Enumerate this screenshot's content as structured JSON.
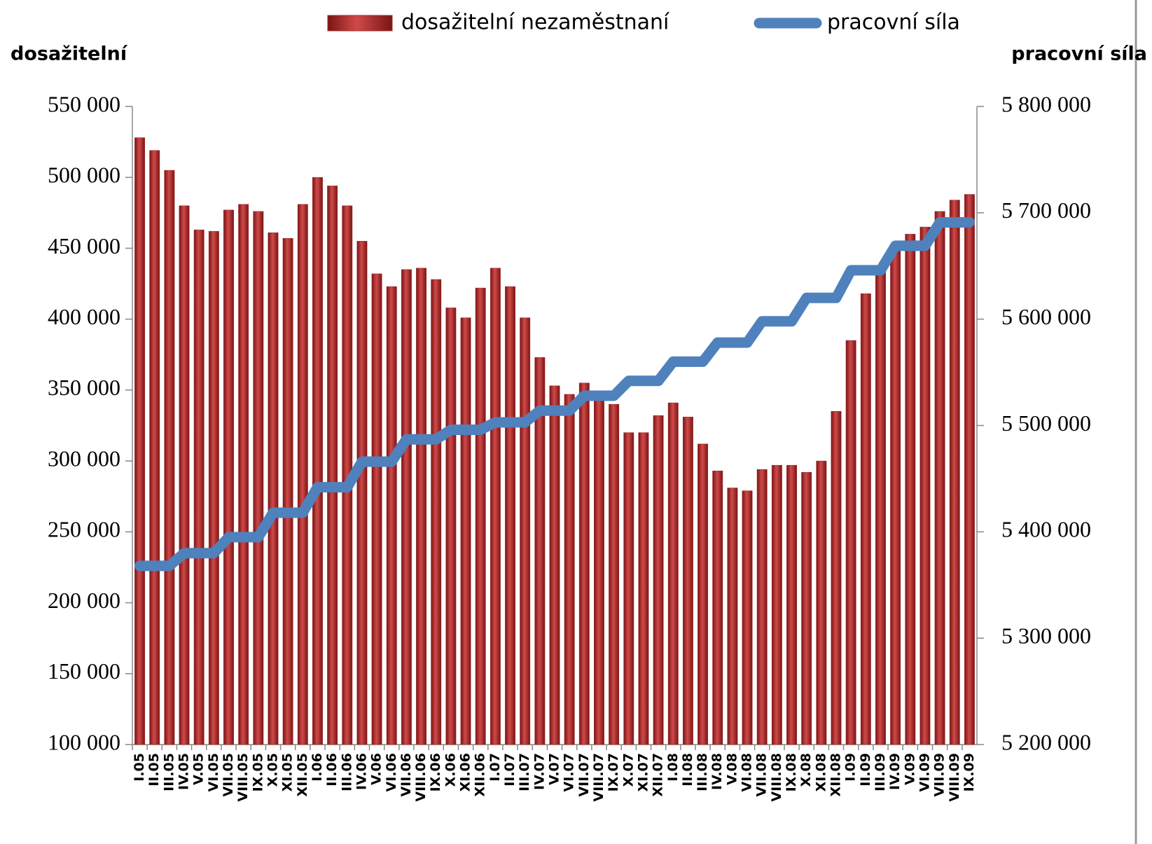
{
  "chart_data": {
    "type": "bar-line",
    "legend": "top",
    "y_label": "dosažitelní",
    "y2_label": "pracovní síla",
    "categories": [
      "I.05",
      "II.05",
      "III.05",
      "IV.05",
      "V.05",
      "VI.05",
      "VII.05",
      "VIII.05",
      "IX.05",
      "X.05",
      "XI.05",
      "XII.05",
      "I.06",
      "II.06",
      "III.06",
      "IV.06",
      "V.06",
      "VI.06",
      "VII.06",
      "VIII.06",
      "IX.06",
      "X.06",
      "XI.06",
      "XII.06",
      "I.07",
      "II.07",
      "III.07",
      "IV.07",
      "V.07",
      "VI.07",
      "VII.07",
      "VIII.07",
      "IX.07",
      "X.07",
      "XI.07",
      "XII.07",
      "I.08",
      "II.08",
      "III.08",
      "IV.08",
      "V.08",
      "VI.08",
      "VII.08",
      "VIII.08",
      "IX.08",
      "X.08",
      "XI.08",
      "XII.08",
      "I.09",
      "II.09",
      "III.09",
      "IV.09",
      "V.09",
      "VI.09",
      "VII.09",
      "VIII.09",
      "IX.09"
    ],
    "series": [
      {
        "name": "dosažitelní nezaměstnaní",
        "type": "bar",
        "color": "#a52a2a",
        "values": [
          528000,
          519000,
          505000,
          480000,
          463000,
          462000,
          477000,
          481000,
          476000,
          461000,
          457000,
          481000,
          500000,
          494000,
          480000,
          455000,
          432000,
          423000,
          435000,
          436000,
          428000,
          408000,
          401000,
          422000,
          436000,
          423000,
          401000,
          373000,
          353000,
          347000,
          355000,
          345000,
          340000,
          320000,
          320000,
          332000,
          341000,
          331000,
          312000,
          293000,
          281000,
          279000,
          294000,
          297000,
          297000,
          292000,
          300000,
          335000,
          385000,
          418000,
          435000,
          450000,
          460000,
          465000,
          476000,
          484000,
          488000
        ]
      },
      {
        "name": "pracovní síla",
        "type": "line",
        "axis": "y2",
        "color": "#4f81bd",
        "values": [
          5368000,
          5368000,
          5368000,
          5380000,
          5380000,
          5380000,
          5395000,
          5395000,
          5395000,
          5418000,
          5418000,
          5418000,
          5442000,
          5442000,
          5442000,
          5466000,
          5466000,
          5466000,
          5487000,
          5487000,
          5487000,
          5496000,
          5496000,
          5496000,
          5503000,
          5503000,
          5503000,
          5514000,
          5514000,
          5514000,
          5528000,
          5528000,
          5528000,
          5542000,
          5542000,
          5542000,
          5560000,
          5560000,
          5560000,
          5578000,
          5578000,
          5578000,
          5598000,
          5598000,
          5598000,
          5620000,
          5620000,
          5620000,
          5646000,
          5646000,
          5646000,
          5669000,
          5669000,
          5669000,
          5691000,
          5691000,
          5691000
        ]
      }
    ],
    "ylim": [
      100000,
      550000
    ],
    "yticks": [
      {
        "value": 100000,
        "label": "100 000"
      },
      {
        "value": 150000,
        "label": "150 000"
      },
      {
        "value": 200000,
        "label": "200 000"
      },
      {
        "value": 250000,
        "label": "250 000"
      },
      {
        "value": 300000,
        "label": "300 000"
      },
      {
        "value": 350000,
        "label": "350 000"
      },
      {
        "value": 400000,
        "label": "400 000"
      },
      {
        "value": 450000,
        "label": "450 000"
      },
      {
        "value": 500000,
        "label": "500 000"
      },
      {
        "value": 550000,
        "label": "550 000"
      }
    ],
    "y2lim": [
      5200000,
      5800000
    ],
    "y2ticks": [
      {
        "value": 5200000,
        "label": "5 200 000"
      },
      {
        "value": 5300000,
        "label": "5 300 000"
      },
      {
        "value": 5400000,
        "label": "5 400 000"
      },
      {
        "value": 5500000,
        "label": "5 500 000"
      },
      {
        "value": 5600000,
        "label": "5 600 000"
      },
      {
        "value": 5700000,
        "label": "5 700 000"
      },
      {
        "value": 5800000,
        "label": "5 800 000"
      }
    ]
  }
}
